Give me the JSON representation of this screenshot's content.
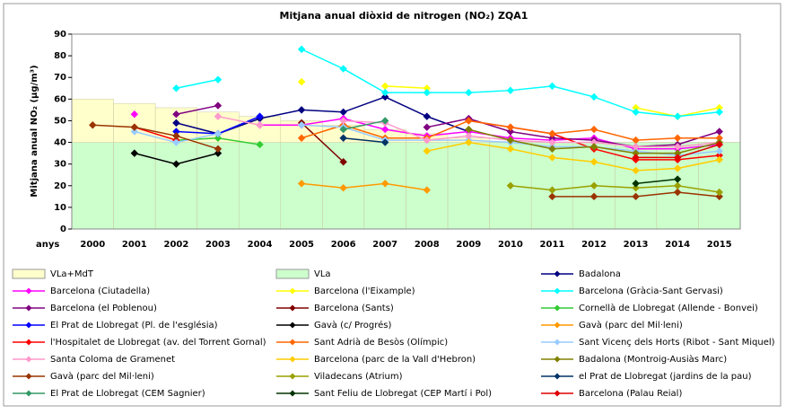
{
  "chart_data": {
    "type": "line",
    "title": "Mitjana anual diòxid de nitrogen (NO₂) ZQA1",
    "y_label": "Mitjana anual NO₂ (µg/m³)",
    "x_label": "anys",
    "categories": [
      "2000",
      "2001",
      "2002",
      "2003",
      "2004",
      "2005",
      "2006",
      "2007",
      "2008",
      "2009",
      "2010",
      "2011",
      "2012",
      "2013",
      "2014",
      "2015"
    ],
    "ylim": [
      0,
      90
    ],
    "yticks": [
      0,
      10,
      20,
      30,
      40,
      50,
      60,
      70,
      80,
      90
    ],
    "grid": false,
    "series": [
      {
        "name": "VLa+MdT",
        "type": "bar",
        "color": "#ffffcc",
        "values": [
          60,
          58,
          56,
          54,
          52,
          50,
          48,
          46,
          44,
          42,
          40,
          40,
          40,
          40,
          40,
          40
        ]
      },
      {
        "name": "VLa",
        "type": "bar",
        "color": "#ccffcc",
        "values": [
          40,
          40,
          40,
          40,
          40,
          40,
          40,
          40,
          40,
          40,
          40,
          40,
          40,
          40,
          40,
          40
        ]
      },
      {
        "name": "Badalona",
        "color": "#000080",
        "values": [
          null,
          null,
          49,
          44,
          51,
          55,
          54,
          61,
          52,
          45,
          null,
          null,
          null,
          null,
          null,
          null
        ]
      },
      {
        "name": "Barcelona (Ciutadella)",
        "color": "#ff00ff",
        "values": [
          null,
          53,
          null,
          null,
          48,
          48,
          51,
          46,
          43,
          45,
          42,
          41,
          42,
          37,
          37,
          39
        ]
      },
      {
        "name": "Barcelona (l'Eixample)",
        "color": "#ffff00",
        "values": [
          null,
          null,
          null,
          null,
          null,
          68,
          null,
          66,
          65,
          null,
          null,
          null,
          null,
          56,
          52,
          56
        ]
      },
      {
        "name": "Barcelona (Gràcia-Sant Gervasi)",
        "color": "#00ffff",
        "values": [
          null,
          null,
          65,
          69,
          null,
          83,
          74,
          63,
          63,
          63,
          64,
          66,
          61,
          54,
          52,
          54
        ]
      },
      {
        "name": "Barcelona (el Poblenou)",
        "color": "#800080",
        "values": [
          null,
          null,
          53,
          57,
          null,
          null,
          null,
          null,
          47,
          51,
          45,
          42,
          41,
          38,
          39,
          45
        ]
      },
      {
        "name": "Barcelona (Sants)",
        "color": "#800000",
        "values": [
          null,
          null,
          null,
          null,
          null,
          49,
          31,
          null,
          null,
          null,
          null,
          null,
          null,
          null,
          null,
          null
        ]
      },
      {
        "name": "Cornellà de Llobregat (Allende - Bonvei)",
        "color": "#33cc33",
        "values": [
          null,
          null,
          41,
          42,
          39,
          null,
          null,
          null,
          null,
          null,
          null,
          null,
          null,
          null,
          null,
          null
        ]
      },
      {
        "name": "El Prat de Llobregat (Pl. de l'església)",
        "color": "#0000ff",
        "values": [
          null,
          null,
          45,
          44,
          52,
          null,
          null,
          null,
          null,
          null,
          null,
          null,
          null,
          null,
          null,
          null
        ]
      },
      {
        "name": "Gavà (c/ Progrés)",
        "color": "#000000",
        "values": [
          null,
          35,
          30,
          35,
          null,
          null,
          null,
          null,
          null,
          null,
          null,
          null,
          null,
          null,
          null,
          null
        ]
      },
      {
        "name": "Gavà (parc del Mil·leni)",
        "color": "#ff9900",
        "values": [
          null,
          null,
          null,
          null,
          null,
          21,
          19,
          21,
          18,
          null,
          null,
          null,
          null,
          null,
          null,
          null
        ]
      },
      {
        "name": "l'Hospitalet de Llobregat (av. del Torrent Gornal)",
        "color": "#ff0000",
        "values": [
          null,
          47,
          41,
          null,
          null,
          null,
          null,
          null,
          null,
          50,
          47,
          44,
          37,
          32,
          32,
          34
        ]
      },
      {
        "name": "Sant Adrià de Besòs (Olímpic)",
        "color": "#ff6600",
        "values": [
          null,
          null,
          null,
          null,
          null,
          42,
          48,
          42,
          42,
          50,
          47,
          44,
          46,
          41,
          42,
          42
        ]
      },
      {
        "name": "Sant Vicenç dels Horts (Ribot - Sant Miquel)",
        "color": "#99ccff",
        "values": [
          null,
          45,
          40,
          44,
          null,
          48,
          47,
          41,
          41,
          41,
          40,
          38,
          38,
          36,
          34,
          36
        ]
      },
      {
        "name": "Santa Coloma de Gramenet",
        "color": "#ff99cc",
        "values": [
          null,
          null,
          null,
          52,
          48,
          null,
          50,
          49,
          41,
          43,
          41,
          40,
          40,
          38,
          38,
          40
        ]
      },
      {
        "name": "Barcelona (parc de la Vall d'Hebron)",
        "color": "#ffcc00",
        "values": [
          null,
          null,
          null,
          null,
          null,
          null,
          null,
          null,
          36,
          40,
          37,
          33,
          31,
          27,
          28,
          32
        ]
      },
      {
        "name": "Badalona (Montroig-Ausiàs Marc)",
        "color": "#808000",
        "values": [
          null,
          null,
          null,
          null,
          null,
          null,
          null,
          null,
          null,
          46,
          41,
          37,
          38,
          35,
          35,
          40
        ]
      },
      {
        "name": "Gavà (parc del Mil·leni)",
        "color": "#993300",
        "values": [
          48,
          47,
          43,
          37,
          null,
          null,
          null,
          null,
          null,
          null,
          null,
          15,
          15,
          15,
          17,
          15
        ]
      },
      {
        "name": "Viladecans (Atrium)",
        "color": "#99a000",
        "values": [
          null,
          null,
          null,
          null,
          null,
          null,
          null,
          null,
          null,
          null,
          20,
          18,
          20,
          19,
          20,
          17
        ]
      },
      {
        "name": "el Prat de Llobregat (jardins de la pau)",
        "color": "#003366",
        "values": [
          null,
          null,
          null,
          null,
          null,
          null,
          42,
          40,
          null,
          null,
          null,
          null,
          null,
          null,
          null,
          null
        ]
      },
      {
        "name": "El Prat de Llobregat (CEM Sagnier)",
        "color": "#339966",
        "values": [
          null,
          null,
          null,
          null,
          null,
          null,
          46,
          50,
          null,
          null,
          null,
          null,
          null,
          null,
          null,
          null
        ]
      },
      {
        "name": "Sant Feliu de Llobregat (CEP Martí i Pol)",
        "color": "#003300",
        "values": [
          null,
          null,
          null,
          null,
          null,
          null,
          null,
          null,
          null,
          null,
          null,
          null,
          null,
          21,
          23,
          null
        ]
      },
      {
        "name": "Barcelona (Palau Reial)",
        "color": "#e00000",
        "values": [
          null,
          null,
          null,
          null,
          null,
          null,
          null,
          null,
          null,
          null,
          null,
          null,
          null,
          33,
          33,
          39
        ]
      }
    ]
  }
}
